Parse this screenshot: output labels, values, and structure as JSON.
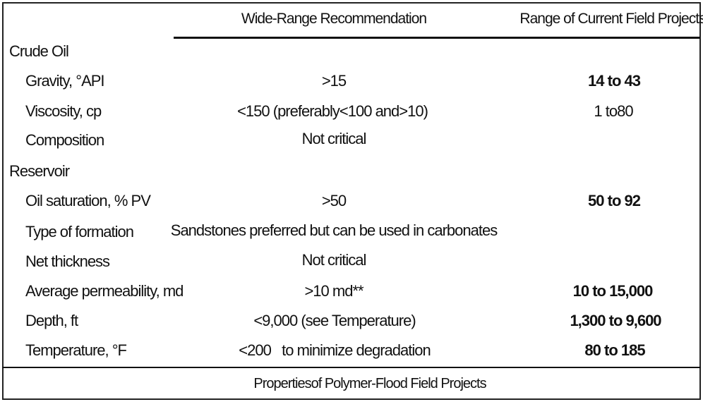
{
  "header": {
    "col_recommendation": "Wide-Range Recommendation",
    "col_range": "Range of Current Field Projects"
  },
  "sections": [
    {
      "title": "Crude Oil",
      "rows": [
        {
          "label": "Gravity, °API",
          "recommendation": ">15",
          "range": "14 to 43"
        },
        {
          "label": "Viscosity, cp",
          "recommendation": "<150 (preferably<100 and>10)",
          "range": "1 to80"
        },
        {
          "label": "Composition",
          "recommendation": "Not critical",
          "range": ""
        }
      ]
    },
    {
      "title": "Reservoir",
      "rows": [
        {
          "label": "Oil saturation, % PV",
          "recommendation": ">50",
          "range": "50 to 92"
        },
        {
          "label": "Type of formation",
          "recommendation": "Sandstones preferred but can be used in carbonates",
          "range": ""
        },
        {
          "label": "Net thickness",
          "recommendation": "Not critical",
          "range": ""
        },
        {
          "label": "Average permeability, md",
          "recommendation": ">10 md**",
          "range": "10 to 15,000"
        },
        {
          "label": "Depth, ft",
          "recommendation": "<9,000 (see Temperature)",
          "range": "1,300 to 9,600"
        },
        {
          "label": "Temperature, °F",
          "recommendation": "<200   to minimize degradation",
          "range": "80 to 185"
        }
      ]
    }
  ],
  "caption": "Propertiesof Polymer-Flood Field Projects"
}
